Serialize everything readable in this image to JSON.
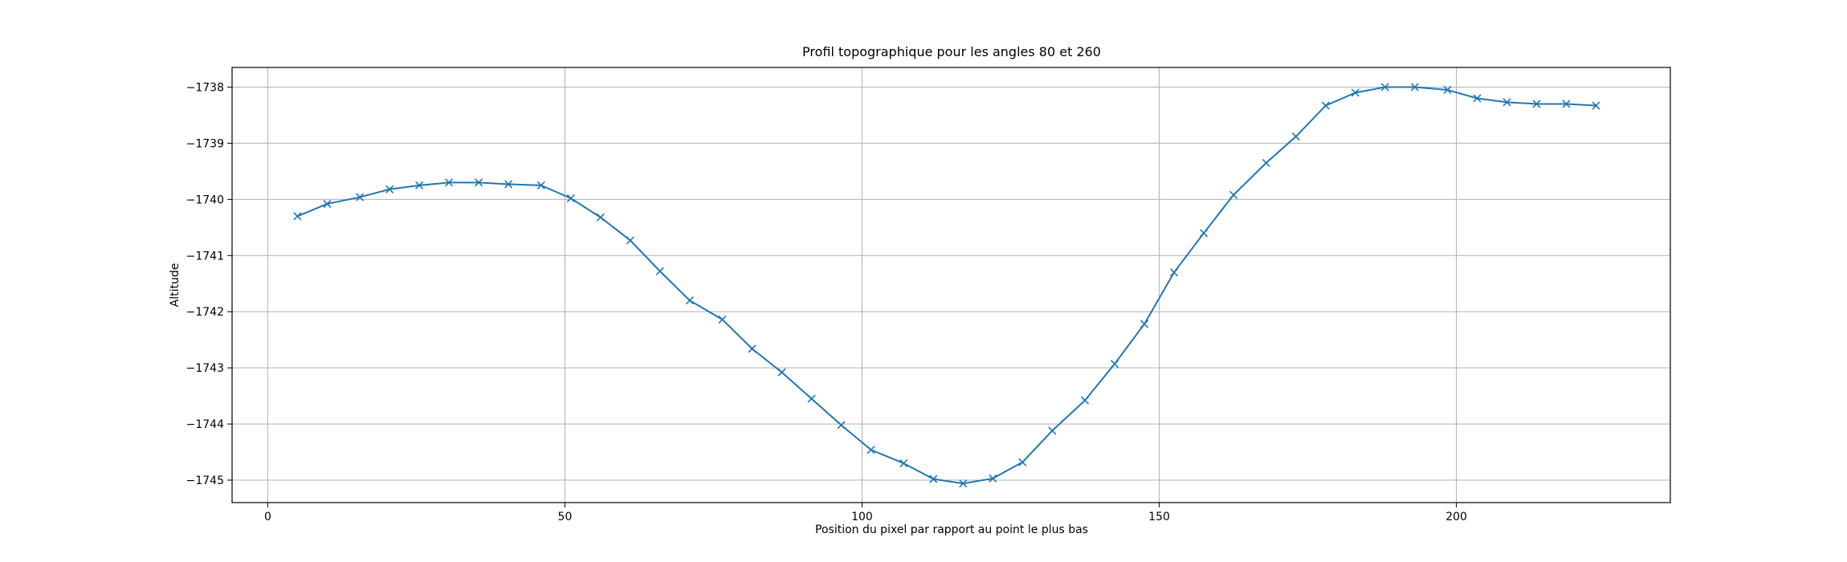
{
  "chart_data": {
    "type": "line",
    "title": "Profil topographique pour les angles 80 et 260",
    "xlabel": "Position du pixel par rapport au point le plus bas",
    "ylabel": "Altitude",
    "xlim": [
      -6,
      236
    ],
    "ylim": [
      -1745.4,
      -1737.65
    ],
    "x_ticks": [
      0,
      50,
      100,
      150,
      200
    ],
    "x_tick_labels": [
      "0",
      "50",
      "100",
      "150",
      "200"
    ],
    "y_ticks": [
      -1738,
      -1739,
      -1740,
      -1741,
      -1742,
      -1743,
      -1744,
      -1745
    ],
    "y_tick_labels": [
      "−1738",
      "−1739",
      "−1740",
      "−1741",
      "−1742",
      "−1743",
      "−1744",
      "−1745"
    ],
    "grid": true,
    "marker": "x",
    "series": [
      {
        "color": "#1f77b4",
        "x": [
          5,
          10,
          15.5,
          20.5,
          25.5,
          30.5,
          35.5,
          40.5,
          46,
          51,
          56,
          61,
          66,
          71,
          76.5,
          81.5,
          86.5,
          91.5,
          96.5,
          101.5,
          107,
          112,
          117,
          122,
          127,
          132,
          137.5,
          142.5,
          147.5,
          152.5,
          157.5,
          162.5,
          168,
          173,
          178,
          183,
          188,
          193,
          198.5,
          203.5,
          208.5,
          213.5,
          218.5,
          223.5
        ],
        "y": [
          -1740.3,
          -1740.08,
          -1739.96,
          -1739.82,
          -1739.75,
          -1739.7,
          -1739.7,
          -1739.73,
          -1739.75,
          -1739.98,
          -1740.32,
          -1740.73,
          -1741.28,
          -1741.8,
          -1742.14,
          -1742.66,
          -1743.08,
          -1743.55,
          -1744.02,
          -1744.46,
          -1744.7,
          -1744.98,
          -1745.06,
          -1744.97,
          -1744.68,
          -1744.12,
          -1743.58,
          -1742.93,
          -1742.22,
          -1741.3,
          -1740.6,
          -1739.92,
          -1739.35,
          -1738.88,
          -1738.33,
          -1738.1,
          -1738.0,
          -1738.0,
          -1738.05,
          -1738.2,
          -1738.27,
          -1738.3,
          -1738.3,
          -1738.33
        ]
      }
    ]
  }
}
